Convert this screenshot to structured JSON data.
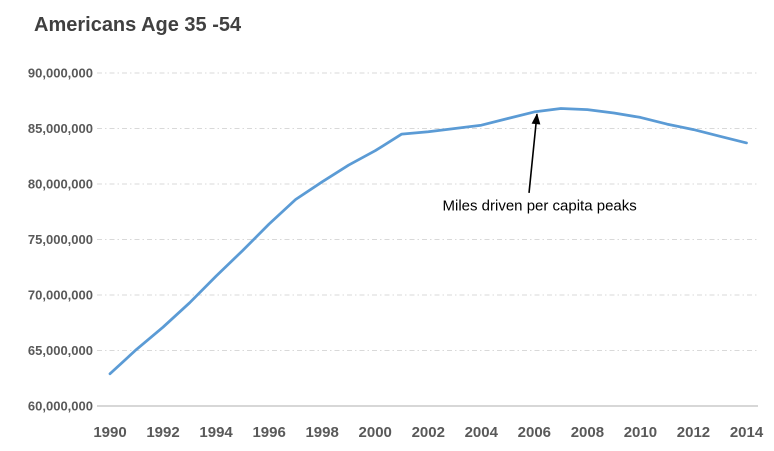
{
  "title": "Americans Age 35 -54",
  "colors": {
    "line": "#5B9BD5",
    "gridline": "#D9D9D9",
    "axis_line": "#BFBFBF",
    "tick_label": "#595959",
    "title_text": "#404040",
    "annotation_text": "#000000",
    "background": "#FFFFFF"
  },
  "chart_data": {
    "type": "line",
    "title": "Americans Age 35 -54",
    "xlabel": "",
    "ylabel": "",
    "legend": "none",
    "grid": "horizontal dash-dot",
    "x": [
      1990,
      1991,
      1992,
      1993,
      1994,
      1995,
      1996,
      1997,
      1998,
      1999,
      2000,
      2001,
      2002,
      2003,
      2004,
      2005,
      2006,
      2007,
      2008,
      2009,
      2010,
      2011,
      2012,
      2013,
      2014
    ],
    "series": [
      {
        "name": "Americans Age 35 -54",
        "color": "#5B9BD5",
        "values": [
          62900000,
          65100000,
          67100000,
          69300000,
          71700000,
          74000000,
          76400000,
          78600000,
          80200000,
          81700000,
          83000000,
          84500000,
          84700000,
          85000000,
          85300000,
          85900000,
          86500000,
          86800000,
          86700000,
          86400000,
          86000000,
          85400000,
          84900000,
          84300000,
          83700000
        ]
      }
    ],
    "ylim": [
      60000000,
      90000000
    ],
    "ytick_step": 5000000,
    "ytick_labels": [
      "60,000,000",
      "65,000,000",
      "70,000,000",
      "75,000,000",
      "80,000,000",
      "85,000,000",
      "90,000,000"
    ],
    "xtick_labels": [
      "1990",
      "1992",
      "1994",
      "1996",
      "1998",
      "2000",
      "2002",
      "2004",
      "2006",
      "2008",
      "2010",
      "2012",
      "2014"
    ],
    "annotation": {
      "text": "Miles driven per capita peaks",
      "arrow_from": {
        "year": 2005.8,
        "value": 79200000
      },
      "arrow_to": {
        "year": 2006.1,
        "value": 86300000
      },
      "text_pos": {
        "year": 2006.2,
        "value": 77600000
      }
    }
  }
}
